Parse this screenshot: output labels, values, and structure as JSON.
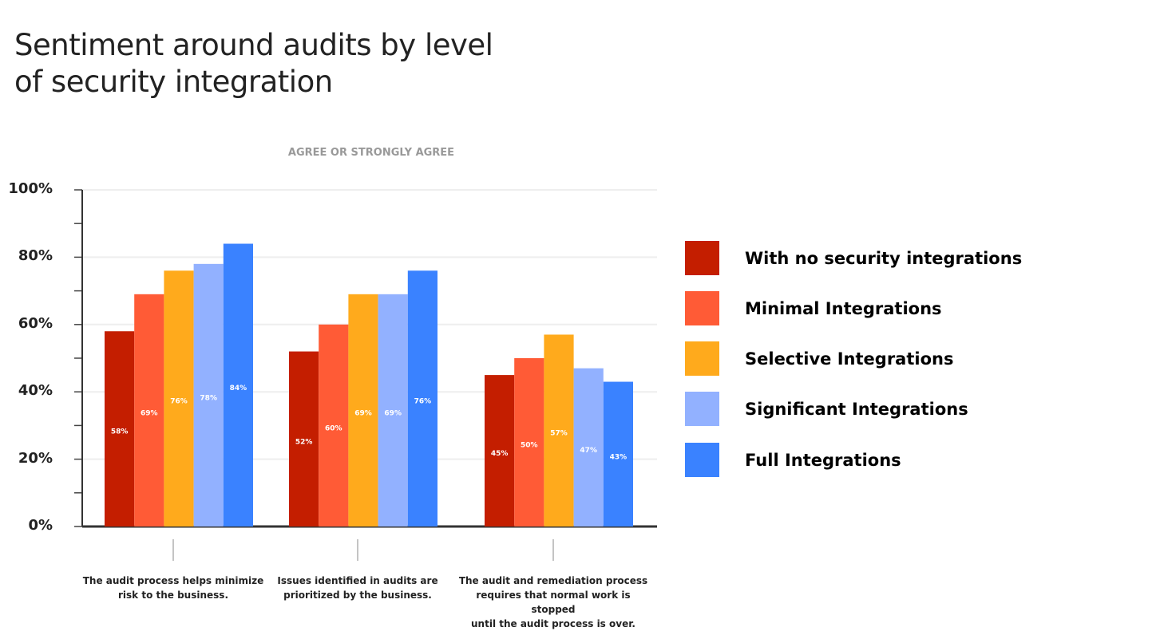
{
  "chart_data": {
    "type": "bar",
    "title": "Sentiment around audits by level of security integration",
    "title_lines": [
      "Sentiment around audits by level",
      "of security integration"
    ],
    "subtitle": "AGREE OR STRONGLY AGREE",
    "xlabel": "",
    "ylabel": "",
    "ylim": [
      0,
      100
    ],
    "yticks": [
      "0%",
      "20%",
      "40%",
      "60%",
      "80%",
      "100%"
    ],
    "grid": true,
    "legend_position": "right",
    "categories": [
      [
        "The audit process helps minimize",
        "risk to the business."
      ],
      [
        "Issues identified in audits are",
        "prioritized by the business."
      ],
      [
        "The audit and remediation process",
        "requires that normal work is stopped",
        "until the audit process is over."
      ]
    ],
    "series": [
      {
        "name": "With no security integrations",
        "color": "#C41E00",
        "values": [
          58,
          52,
          45
        ],
        "labels": [
          "58%",
          "52%",
          "45%"
        ]
      },
      {
        "name": "Minimal Integrations",
        "color": "#FF5B36",
        "values": [
          69,
          60,
          50
        ],
        "labels": [
          "69%",
          "60%",
          "50%"
        ]
      },
      {
        "name": "Selective Integrations",
        "color": "#FFAA1C",
        "values": [
          76,
          69,
          57
        ],
        "labels": [
          "76%",
          "69%",
          "57%"
        ]
      },
      {
        "name": "Significant Integrations",
        "color": "#92B1FF",
        "values": [
          78,
          69,
          47
        ],
        "labels": [
          "78%",
          "69%",
          "47%"
        ]
      },
      {
        "name": "Full Integrations",
        "color": "#3A82FF",
        "values": [
          84,
          76,
          43
        ],
        "labels": [
          "84%",
          "76%",
          "43%"
        ]
      }
    ]
  }
}
